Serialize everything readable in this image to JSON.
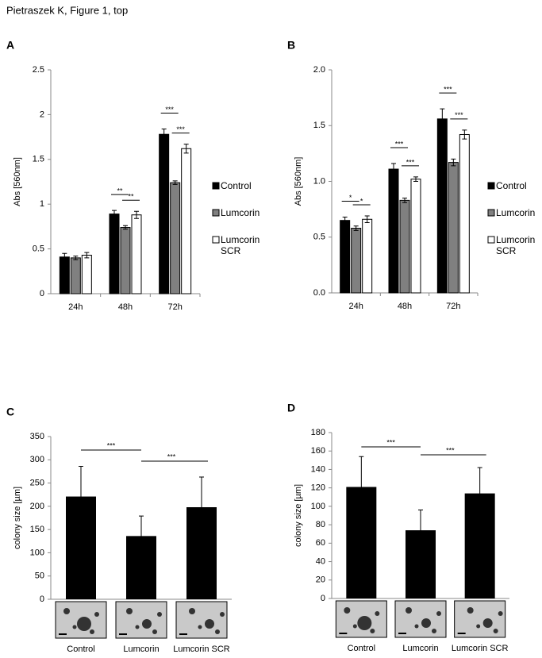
{
  "title": "Pietraszek K, Figure 1, top",
  "chart_data": [
    {
      "type": "bar",
      "panel": "A",
      "ylabel": "Abs [560nm]",
      "categories": [
        "24h",
        "48h",
        "72h"
      ],
      "series": [
        {
          "name": "Control",
          "color": "#000000",
          "values": [
            0.41,
            0.89,
            1.78
          ],
          "errors": [
            0.04,
            0.04,
            0.06
          ]
        },
        {
          "name": "Lumcorin",
          "color": "#808080",
          "values": [
            0.4,
            0.74,
            1.24
          ],
          "errors": [
            0.02,
            0.02,
            0.02
          ]
        },
        {
          "name": "Lumcorin SCR",
          "color": "#ffffff",
          "values": [
            0.43,
            0.88,
            1.62
          ],
          "errors": [
            0.03,
            0.04,
            0.05
          ]
        }
      ],
      "ylim": [
        0,
        2.5
      ],
      "yticks": [
        0,
        0.5,
        1,
        1.5,
        2,
        2.5
      ],
      "annotations": [
        "**",
        "**",
        "***",
        "***"
      ]
    },
    {
      "type": "bar",
      "panel": "B",
      "ylabel": "Abs [560nm]",
      "categories": [
        "24h",
        "48h",
        "72h"
      ],
      "series": [
        {
          "name": "Control",
          "color": "#000000",
          "values": [
            0.65,
            1.11,
            1.56
          ],
          "errors": [
            0.03,
            0.05,
            0.09
          ]
        },
        {
          "name": "Lumcorin",
          "color": "#808080",
          "values": [
            0.58,
            0.83,
            1.17
          ],
          "errors": [
            0.02,
            0.02,
            0.03
          ]
        },
        {
          "name": "Lumcorin SCR",
          "color": "#ffffff",
          "values": [
            0.66,
            1.02,
            1.42
          ],
          "errors": [
            0.03,
            0.02,
            0.04
          ]
        }
      ],
      "ylim": [
        0,
        2
      ],
      "yticks": [
        {
          "value": 0,
          "label": "0.0"
        },
        0.5,
        {
          "value": 1,
          "label": "1.0"
        },
        1.5,
        {
          "value": 2,
          "label": "2.0"
        }
      ],
      "annotations": [
        "*",
        "*",
        "***",
        "***",
        "***",
        "***"
      ]
    },
    {
      "type": "bar",
      "panel": "C",
      "ylabel": "colony size [µm]",
      "categories": [
        "Control",
        "Lumcorin",
        "Lumcorin SCR"
      ],
      "color": "#000000",
      "values": [
        221,
        136,
        198
      ],
      "errors": [
        65,
        43,
        65
      ],
      "ylim": [
        0,
        350
      ],
      "yticks": [
        0,
        50,
        100,
        150,
        200,
        250,
        300,
        350
      ],
      "annotations": [
        "***",
        "***"
      ]
    },
    {
      "type": "bar",
      "panel": "D",
      "ylabel": "colony size [µm]",
      "categories": [
        "Control",
        "Lumcorin",
        "Lumcorin SCR"
      ],
      "color": "#000000",
      "values": [
        121,
        74,
        114
      ],
      "errors": [
        33,
        22,
        28
      ],
      "ylim": [
        0,
        180
      ],
      "yticks": [
        0,
        20,
        40,
        60,
        80,
        100,
        120,
        140,
        160,
        180
      ],
      "annotations": [
        "***",
        "***"
      ]
    }
  ]
}
